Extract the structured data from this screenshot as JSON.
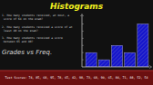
{
  "chart_data": {
    "type": "bar",
    "title": "Histograms",
    "subtitle": "Grades vs Freq.",
    "annotations": [
      "1. How many students received, at most, a\n   score of 64 on the exam?\n\n2. How many students received a score of at\n   least 80 on the exam?\n\n3. How many students received a score\n   between 65 and 80?",
      "Test Scores: 74, 85, 68, 95, 78, 65, 42, 98, 73, 68, 90, 65, 84, 71, 88, 52, 54"
    ],
    "categories": [
      null,
      null,
      null,
      null,
      null
    ],
    "values": [
      2,
      1,
      3,
      2,
      6
    ],
    "color": "#1515cc",
    "ylim": [
      0,
      7.2
    ],
    "yticks": [
      1,
      2,
      3,
      4,
      5,
      6
    ],
    "grid": false,
    "tick_labels": false
  }
}
